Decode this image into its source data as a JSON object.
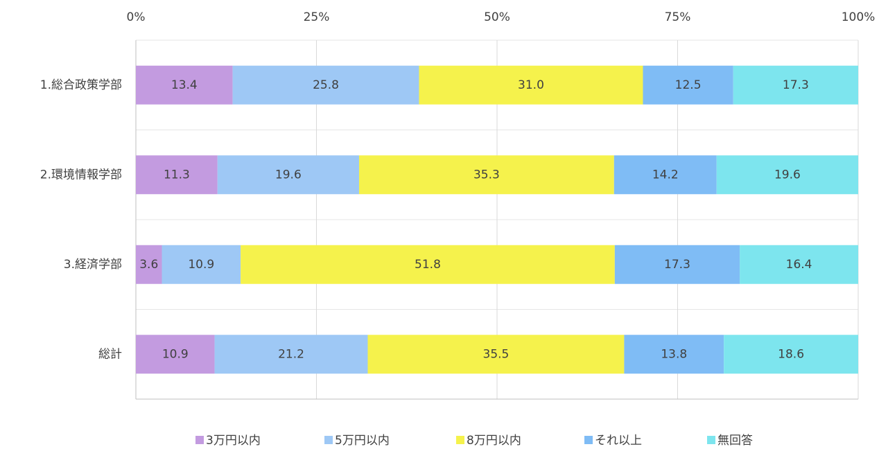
{
  "chart_data": {
    "type": "stacked_barh",
    "categories": [
      "1.総合政策学部",
      "2.環境情報学部",
      "3.経済学部",
      "総計"
    ],
    "series": [
      {
        "name": "3万円以内",
        "color": "#c39be0",
        "values": [
          13.4,
          11.3,
          3.6,
          10.9
        ],
        "value_labels": [
          "13.4",
          "11.3",
          "3.6",
          "10.9"
        ]
      },
      {
        "name": "5万円以内",
        "color": "#9ec8f5",
        "values": [
          25.8,
          19.6,
          10.9,
          21.2
        ],
        "value_labels": [
          "25.8",
          "19.6",
          "10.9",
          "21.2"
        ]
      },
      {
        "name": "8万円以内",
        "color": "#f5f24c",
        "values": [
          31.0,
          35.3,
          51.8,
          35.5
        ],
        "value_labels": [
          "31.0",
          "35.3",
          "51.8",
          "35.5"
        ]
      },
      {
        "name": "それ以上",
        "color": "#7fbcf5",
        "values": [
          12.5,
          14.2,
          17.3,
          13.8
        ],
        "value_labels": [
          "12.5",
          "14.2",
          "17.3",
          "13.8"
        ]
      },
      {
        "name": "無回答",
        "color": "#7de5ee",
        "values": [
          17.3,
          19.6,
          16.4,
          18.6
        ],
        "value_labels": [
          "17.3",
          "19.6",
          "16.4",
          "18.6"
        ]
      }
    ],
    "xlim": [
      0,
      100
    ],
    "xticks": [
      {
        "value": 0,
        "label": "0%"
      },
      {
        "value": 25,
        "label": "25%"
      },
      {
        "value": 50,
        "label": "50%"
      },
      {
        "value": 75,
        "label": "75%"
      },
      {
        "value": 100,
        "label": "100%"
      }
    ],
    "grid": true,
    "legend": "bottom"
  }
}
